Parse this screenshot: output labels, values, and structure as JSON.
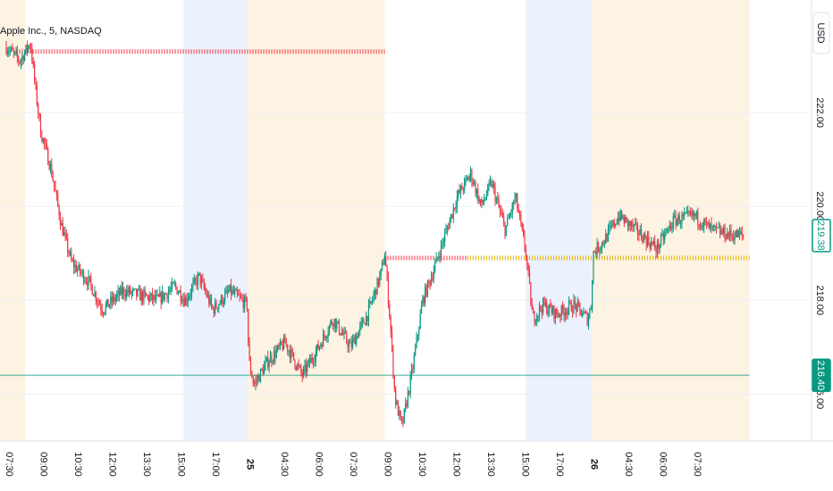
{
  "symbol_title": "Apple Inc., 5, NASDAQ",
  "currency_label": "USD",
  "colors": {
    "up": "#089981",
    "down": "#f23645",
    "session_premarket": "#fdf3e3",
    "session_postmarket": "#ebf1fd",
    "resistance_line": "#f23645",
    "pivot_line": "#e0b100",
    "support_line": "#089981",
    "grid": "#eef0f3"
  },
  "chart_data": {
    "type": "candlestick",
    "title": "Apple Inc., 5, NASDAQ",
    "ylabel": "USD",
    "ylim": [
      215.0,
      224.4
    ],
    "y_ticks": [
      "222.00",
      "220.00",
      "218.00",
      "216.00"
    ],
    "x_ticks": [
      {
        "label": "07:30",
        "bold": false
      },
      {
        "label": "09:00",
        "bold": false
      },
      {
        "label": "10:30",
        "bold": false
      },
      {
        "label": "12:00",
        "bold": false
      },
      {
        "label": "13:30",
        "bold": false
      },
      {
        "label": "15:00",
        "bold": false
      },
      {
        "label": "17:00",
        "bold": false
      },
      {
        "label": "25",
        "bold": true
      },
      {
        "label": "04:30",
        "bold": false
      },
      {
        "label": "06:00",
        "bold": false
      },
      {
        "label": "07:30",
        "bold": false
      },
      {
        "label": "09:00",
        "bold": false
      },
      {
        "label": "10:30",
        "bold": false
      },
      {
        "label": "12:00",
        "bold": false
      },
      {
        "label": "13:30",
        "bold": false
      },
      {
        "label": "15:00",
        "bold": false
      },
      {
        "label": "17:00",
        "bold": false
      },
      {
        "label": "26",
        "bold": true
      },
      {
        "label": "04:30",
        "bold": false
      },
      {
        "label": "06:00",
        "bold": false
      },
      {
        "label": "07:30",
        "bold": false
      }
    ],
    "sessions": [
      {
        "kind": "premarket",
        "from": 0,
        "to": 0.55
      },
      {
        "kind": "postmarket",
        "from": 5.15,
        "to": 7.0
      },
      {
        "kind": "premarket",
        "from": 7.0,
        "to": 11.0
      },
      {
        "kind": "postmarket",
        "from": 15.1,
        "to": 17.0
      },
      {
        "kind": "premarket",
        "from": 17.0,
        "to": 21.6
      }
    ],
    "levels": [
      {
        "kind": "resistance",
        "price": 223.3,
        "from": 0.3,
        "to": 11.0
      },
      {
        "kind": "resistance",
        "price": 218.9,
        "from": 11.0,
        "to": 13.4
      },
      {
        "kind": "pivot",
        "price": 218.9,
        "from": 13.4,
        "to": 21.6
      },
      {
        "kind": "support",
        "price": 216.4,
        "from": 0,
        "to": 21.6
      }
    ],
    "price_tags": [
      {
        "label": "219.38",
        "price": 219.38,
        "style": "outline"
      },
      {
        "label": "216.40",
        "price": 216.4,
        "style": "filled"
      }
    ],
    "path": [
      [
        0,
        223.4
      ],
      [
        0.4,
        223.1
      ],
      [
        0.7,
        223.5
      ],
      [
        0.85,
        222.5
      ],
      [
        1.0,
        221.6
      ],
      [
        1.3,
        220.8
      ],
      [
        1.6,
        219.6
      ],
      [
        1.9,
        218.8
      ],
      [
        2.4,
        218.4
      ],
      [
        2.8,
        217.8
      ],
      [
        3.4,
        218.2
      ],
      [
        3.9,
        218.1
      ],
      [
        4.4,
        218.0
      ],
      [
        4.9,
        218.3
      ],
      [
        5.2,
        218.0
      ],
      [
        5.6,
        218.5
      ],
      [
        6.0,
        217.8
      ],
      [
        6.5,
        218.2
      ],
      [
        7.0,
        217.9
      ],
      [
        7.05,
        216.7
      ],
      [
        7.2,
        216.2
      ],
      [
        7.6,
        216.7
      ],
      [
        8.1,
        217.1
      ],
      [
        8.6,
        216.4
      ],
      [
        9.0,
        216.9
      ],
      [
        9.5,
        217.6
      ],
      [
        10.0,
        217.0
      ],
      [
        10.5,
        217.7
      ],
      [
        10.9,
        218.6
      ],
      [
        11.0,
        219.0
      ],
      [
        11.15,
        217.6
      ],
      [
        11.3,
        215.9
      ],
      [
        11.5,
        215.3
      ],
      [
        11.8,
        216.5
      ],
      [
        12.1,
        218.0
      ],
      [
        12.4,
        218.6
      ],
      [
        12.8,
        219.5
      ],
      [
        13.1,
        220.2
      ],
      [
        13.5,
        220.7
      ],
      [
        13.8,
        220.0
      ],
      [
        14.1,
        220.5
      ],
      [
        14.5,
        219.5
      ],
      [
        14.8,
        220.2
      ],
      [
        15.1,
        219.0
      ],
      [
        15.3,
        217.6
      ],
      [
        15.6,
        217.9
      ],
      [
        16.0,
        217.7
      ],
      [
        16.5,
        217.9
      ],
      [
        16.9,
        217.6
      ],
      [
        17.0,
        217.9
      ],
      [
        17.05,
        219.0
      ],
      [
        17.4,
        219.3
      ],
      [
        17.8,
        219.8
      ],
      [
        18.3,
        219.5
      ],
      [
        18.9,
        219.1
      ],
      [
        19.4,
        219.7
      ],
      [
        20.0,
        219.8
      ],
      [
        20.5,
        219.5
      ],
      [
        21.0,
        219.4
      ],
      [
        21.45,
        219.38
      ]
    ]
  }
}
